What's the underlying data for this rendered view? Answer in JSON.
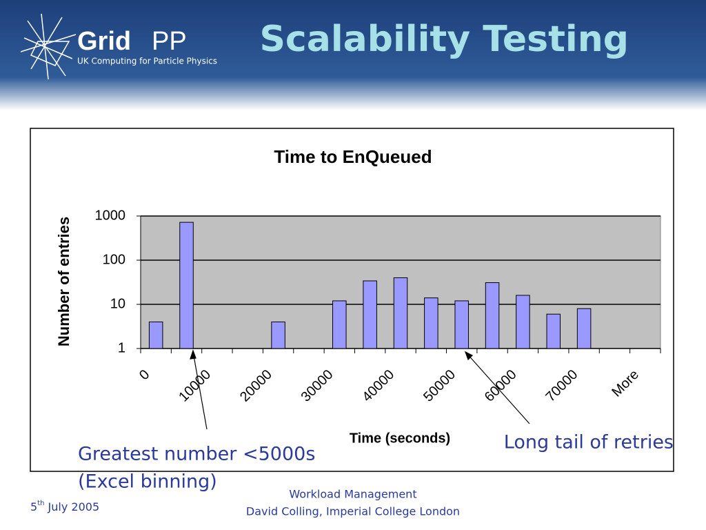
{
  "slide": {
    "logo_bold": "Grid",
    "logo_light": "PP",
    "logo_subtitle": "UK Computing for Particle Physics",
    "title": "Scalability Testing",
    "footer_line1": "Workload Management",
    "footer_line2": "David Colling, Imperial College London",
    "date_day": "5",
    "date_suffix": "th",
    "date_rest": " July 2005"
  },
  "chart_data": {
    "type": "bar",
    "title": "Time to EnQueued",
    "xlabel": "Time (seconds)",
    "ylabel": "Number of entries",
    "categories": [
      "0",
      null,
      "10000",
      null,
      "20000",
      null,
      "30000",
      null,
      "40000",
      null,
      "50000",
      null,
      "60000",
      null,
      "70000",
      null,
      "More"
    ],
    "values": [
      4,
      720,
      null,
      null,
      4,
      null,
      12,
      34,
      40,
      14,
      12,
      31,
      16,
      6,
      8,
      null,
      null
    ],
    "color": "#9999ff",
    "log_y": true,
    "ylim": [
      1,
      1000
    ],
    "yticks": [
      1,
      10,
      100,
      1000
    ],
    "grid": true,
    "annotations": [
      "Greatest number <5000s",
      "(Excel binning)",
      "Long tail of retries"
    ]
  }
}
